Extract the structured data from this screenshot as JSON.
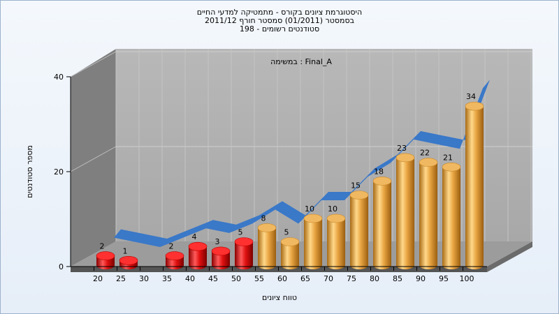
{
  "chart_data": {
    "type": "bar",
    "title_lines": [
      "היסטוגרמת ציונים בקורס - מתמטיקה למדעי החיים",
      "בסמסטר  (01/2011)  סמסטר חורף 2011/12",
      "סטודנטים רשומים - 198"
    ],
    "annotation": "במשימה : Final_A",
    "xlabel": "טווח ציונים",
    "ylabel": "מספר סטודנטים",
    "ylim": [
      0,
      40
    ],
    "yticks": [
      0,
      20,
      40
    ],
    "categories": [
      "20",
      "25",
      "30",
      "35",
      "40",
      "45",
      "50",
      "55",
      "60",
      "65",
      "70",
      "75",
      "80",
      "85",
      "90",
      "95",
      "100"
    ],
    "values": [
      2,
      1,
      0,
      2,
      4,
      3,
      5,
      8,
      5,
      10,
      10,
      15,
      18,
      23,
      22,
      21,
      34
    ],
    "colors": {
      "fail": "#e01010",
      "pass": "#e8a441",
      "trend": "#3a78c8"
    },
    "grid": true,
    "trend_line": true
  }
}
